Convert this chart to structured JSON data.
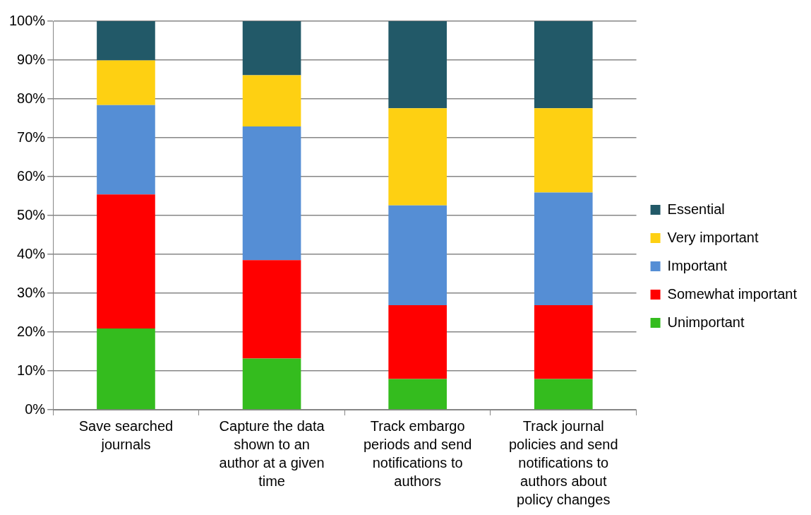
{
  "chart_data": {
    "type": "bar",
    "stacked": true,
    "categories": [
      "Save searched journals",
      "Capture the data shown to an author at a given time",
      "Track embargo periods and send notifications to authors",
      "Track journal policies and send notifications to authors about policy changes"
    ],
    "series": [
      {
        "name": "Unimportant",
        "color": "#34bc1e",
        "values": [
          20.9,
          13.2,
          7.9,
          7.9
        ]
      },
      {
        "name": "Somewhat important",
        "color": "#ff0000",
        "values": [
          34.5,
          25.3,
          19.0,
          19.0
        ]
      },
      {
        "name": "Important",
        "color": "#558ed5",
        "values": [
          23.0,
          34.4,
          25.7,
          29.0
        ]
      },
      {
        "name": "Very important",
        "color": "#fed012",
        "values": [
          11.5,
          13.2,
          25.0,
          21.7
        ]
      },
      {
        "name": "Essential",
        "color": "#225968",
        "values": [
          10.1,
          13.9,
          22.4,
          22.4
        ]
      }
    ],
    "ylim": [
      0,
      100
    ],
    "yticks": [
      {
        "value": 0,
        "label": "0%"
      },
      {
        "value": 10,
        "label": "10%"
      },
      {
        "value": 20,
        "label": "20%"
      },
      {
        "value": 30,
        "label": "30%"
      },
      {
        "value": 40,
        "label": "40%"
      },
      {
        "value": 50,
        "label": "50%"
      },
      {
        "value": 60,
        "label": "60%"
      },
      {
        "value": 70,
        "label": "70%"
      },
      {
        "value": 80,
        "label": "80%"
      },
      {
        "value": 90,
        "label": "90%"
      },
      {
        "value": 100,
        "label": "100%"
      }
    ],
    "grid": "y",
    "legend": "right"
  }
}
